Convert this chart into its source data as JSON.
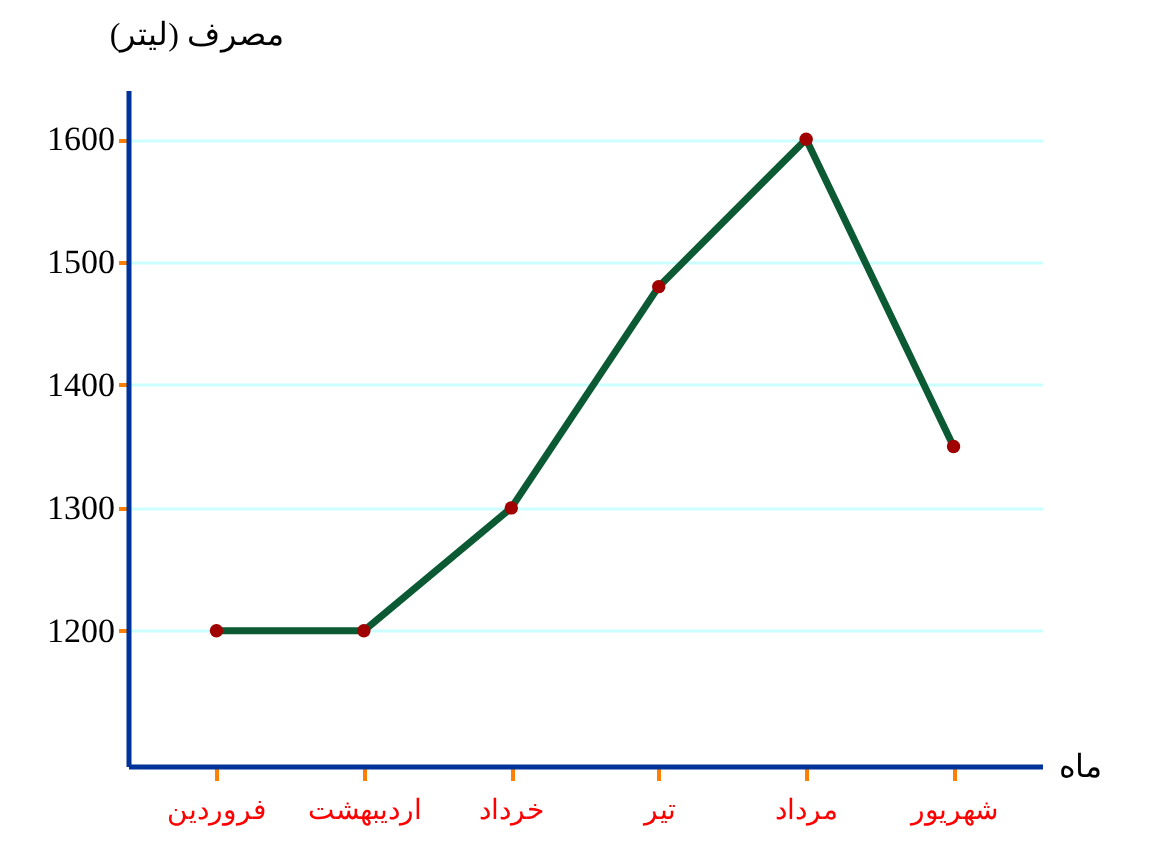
{
  "chart_data": {
    "type": "line",
    "xlabel": "ماه",
    "ylabel": "مصرف (لیتر)",
    "categories": [
      "فروردین",
      "اردیبهشت",
      "خرداد",
      "تیر",
      "مرداد",
      "شهریور"
    ],
    "series": [
      {
        "color": "#0b5a33",
        "values": [
          1200,
          1200,
          1300,
          1480,
          1600,
          1350
        ]
      }
    ],
    "ylim": [
      1090,
      1640
    ],
    "yticks": [
      1200,
      1300,
      1400,
      1500,
      1600
    ],
    "grid": "y",
    "marker": "circle",
    "line_style": "solid"
  }
}
